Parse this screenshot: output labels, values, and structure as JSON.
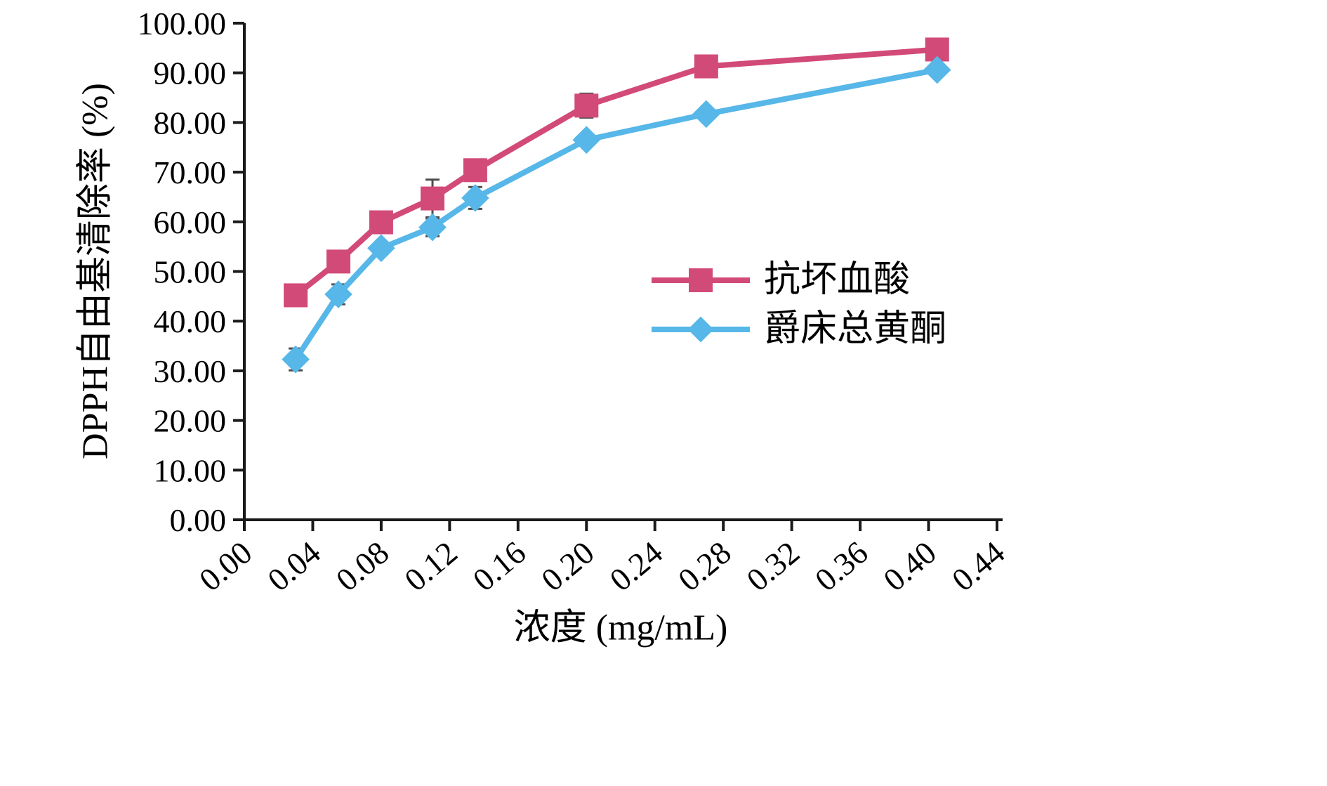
{
  "chart_data": {
    "type": "line",
    "title": "",
    "xlabel": "浓度 (mg/mL)",
    "ylabel": "DPPH自由基清除率 (%)",
    "xlim": [
      0,
      0.44
    ],
    "ylim": [
      0,
      100
    ],
    "grid": false,
    "legend_position": "right-middle",
    "x_ticks": [
      "0.00",
      "0.04",
      "0.08",
      "0.12",
      "0.16",
      "0.20",
      "0.24",
      "0.28",
      "0.32",
      "0.36",
      "0.40",
      "0.44"
    ],
    "y_ticks": [
      "0.00",
      "10.00",
      "20.00",
      "30.00",
      "40.00",
      "50.00",
      "60.00",
      "70.00",
      "80.00",
      "90.00",
      "100.00"
    ],
    "x": [
      0.03,
      0.055,
      0.08,
      0.11,
      0.135,
      0.2,
      0.27,
      0.405
    ],
    "series": [
      {
        "name": "抗坏血酸",
        "marker": "square",
        "color": "#d24a77",
        "values": [
          45.2,
          52.0,
          59.9,
          64.7,
          70.4,
          83.4,
          91.3,
          94.7
        ],
        "errors": [
          1.5,
          1.0,
          0.8,
          3.8,
          1.3,
          2.4,
          0.8,
          1.0
        ]
      },
      {
        "name": "爵床总黄酮",
        "marker": "diamond",
        "color": "#56b7e8",
        "values": [
          32.3,
          45.4,
          54.7,
          58.9,
          64.8,
          76.5,
          81.7,
          90.6
        ],
        "errors": [
          2.2,
          2.0,
          1.0,
          1.8,
          2.2,
          0.8,
          0.8,
          1.2
        ]
      }
    ],
    "error_bar_color": "#4d4d4d",
    "axis_color": "#1a1a1a"
  }
}
